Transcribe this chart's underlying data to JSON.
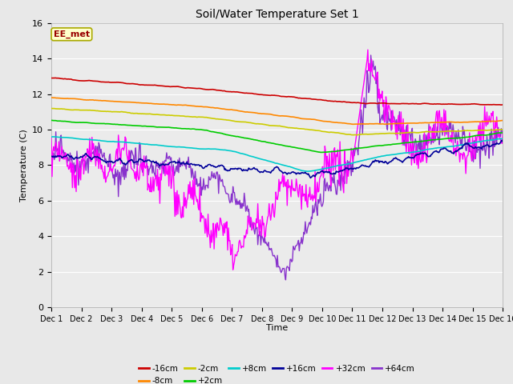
{
  "title": "Soil/Water Temperature Set 1",
  "xlabel": "Time",
  "ylabel": "Temperature (C)",
  "ylim": [
    0,
    16
  ],
  "xlim": [
    0,
    15
  ],
  "xtick_labels": [
    "Dec 1",
    "Dec 2",
    "Dec 3",
    "Dec 4",
    "Dec 5",
    "Dec 6",
    "Dec 7",
    "Dec 8",
    "Dec 9",
    "Dec 10",
    "Dec 11",
    "Dec 12",
    "Dec 13",
    "Dec 14",
    "Dec 15",
    "Dec 16"
  ],
  "ytick_vals": [
    0,
    2,
    4,
    6,
    8,
    10,
    12,
    14,
    16
  ],
  "background_color": "#e8e8e8",
  "plot_bg_color": "#ebebeb",
  "grid_color": "#ffffff",
  "annotation_text": "EE_met",
  "annotation_bg": "#ffffcc",
  "annotation_border": "#aaaa00",
  "annotation_text_color": "#990000",
  "legend": [
    "-16cm",
    "-8cm",
    "-2cm",
    "+2cm",
    "+8cm",
    "+16cm",
    "+32cm",
    "+64cm"
  ],
  "colors": [
    "#cc0000",
    "#ff8800",
    "#cccc00",
    "#00cc00",
    "#00cccc",
    "#000099",
    "#ff00ff",
    "#8833cc"
  ],
  "linewidths": [
    1.2,
    1.2,
    1.2,
    1.2,
    1.2,
    1.2,
    1.0,
    1.0
  ]
}
